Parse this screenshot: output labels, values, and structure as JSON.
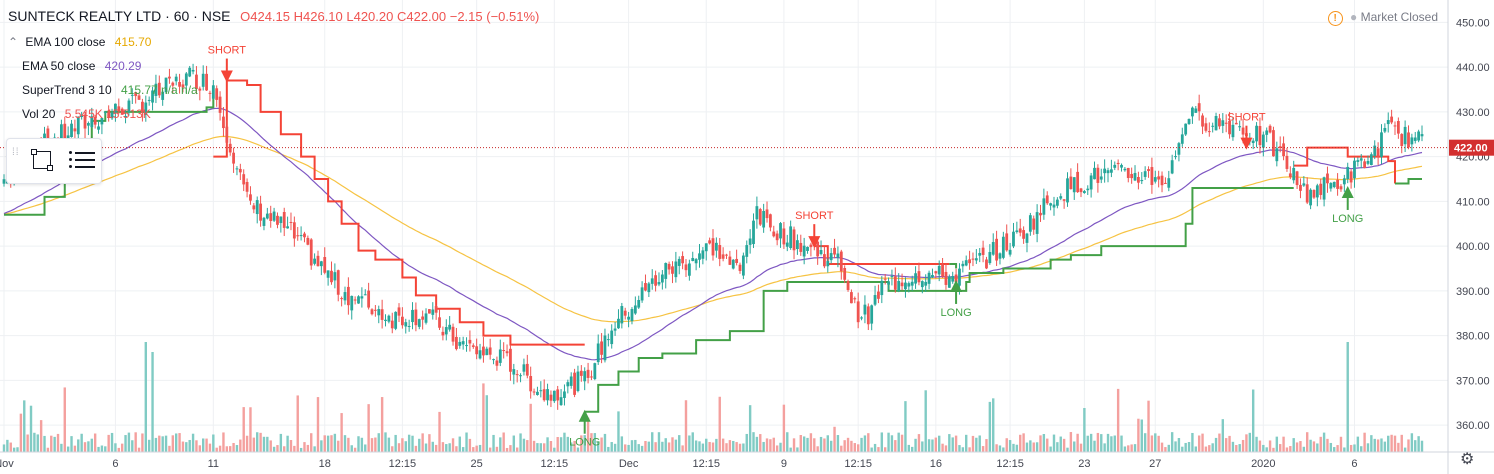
{
  "header": {
    "symbol": "SUNTECK REALTY LTD · 60 · NSE",
    "ohlc": "O424.15 H426.10 L420.20 C422.00 −2.15 (−0.51%)"
  },
  "market_status": "Market Closed",
  "legend": [
    {
      "name": "EMA 100 close",
      "value": "415.70",
      "color": "#f6c343"
    },
    {
      "name": "EMA 50 close",
      "value": "420.29",
      "color": "#7e57c2"
    },
    {
      "name": "SuperTrend 3 10",
      "value": "415.77 n/a n/a",
      "color": "#4caf50"
    },
    {
      "name": "Vol 20",
      "value": "5.545K 15.513K",
      "color": "#ef5350"
    }
  ],
  "colors": {
    "up": "#26a69a",
    "down": "#ef5350",
    "vol_up": "#80cbc4",
    "vol_down": "#f4a09e",
    "st_green": "#43a047",
    "st_red": "#f44336",
    "ema100": "#f6c343",
    "ema50": "#7e57c2",
    "grid": "#eef0f3",
    "axis_text": "#434651",
    "price_line": "#c62828"
  },
  "chart_data": {
    "type": "candlestick",
    "yaxis": {
      "ticks": [
        360,
        370,
        380,
        390,
        400,
        410,
        420,
        430,
        440,
        450
      ],
      "range": [
        354,
        455
      ]
    },
    "xaxis": {
      "ticks": [
        "Nov",
        "6",
        "11",
        "18",
        "12:15",
        "25",
        "12:15",
        "Dec",
        "12:15",
        "9",
        "12:15",
        "16",
        "12:15",
        "23",
        "27",
        "2020",
        "6"
      ]
    },
    "last_price": "422.00",
    "price_anchors": [
      [
        0,
        415
      ],
      [
        10,
        422
      ],
      [
        25,
        428
      ],
      [
        40,
        432
      ],
      [
        55,
        438
      ],
      [
        62,
        436
      ],
      [
        72,
        410
      ],
      [
        85,
        403
      ],
      [
        100,
        390
      ],
      [
        115,
        384
      ],
      [
        125,
        385
      ],
      [
        135,
        378
      ],
      [
        150,
        374
      ],
      [
        160,
        367
      ],
      [
        172,
        370
      ],
      [
        180,
        382
      ],
      [
        195,
        394
      ],
      [
        210,
        400
      ],
      [
        218,
        394
      ],
      [
        222,
        407
      ],
      [
        235,
        401
      ],
      [
        248,
        396
      ],
      [
        252,
        386
      ],
      [
        256,
        384
      ],
      [
        260,
        391
      ],
      [
        270,
        394
      ],
      [
        280,
        393
      ],
      [
        290,
        397
      ],
      [
        300,
        402
      ],
      [
        312,
        412
      ],
      [
        325,
        416
      ],
      [
        335,
        416
      ],
      [
        345,
        415
      ],
      [
        350,
        429
      ],
      [
        365,
        427
      ],
      [
        375,
        423
      ],
      [
        380,
        418
      ],
      [
        385,
        412
      ],
      [
        395,
        414
      ],
      [
        405,
        420
      ],
      [
        410,
        426
      ],
      [
        420,
        423
      ]
    ],
    "supertrend": [
      {
        "dir": "down",
        "points": [
          [
            62,
            420
          ],
          [
            66,
            437
          ],
          [
            72,
            436
          ],
          [
            76,
            430
          ],
          [
            82,
            425
          ],
          [
            88,
            420
          ],
          [
            92,
            415
          ],
          [
            96,
            410
          ],
          [
            100,
            405
          ],
          [
            105,
            399
          ],
          [
            110,
            397
          ],
          [
            115,
            397
          ],
          [
            118,
            393
          ],
          [
            122,
            389
          ],
          [
            128,
            386
          ],
          [
            135,
            383
          ],
          [
            142,
            380
          ],
          [
            150,
            378
          ],
          [
            160,
            378
          ],
          [
            166,
            378
          ],
          [
            172,
            378
          ]
        ]
      },
      {
        "dir": "up",
        "points": [
          [
            172,
            363
          ],
          [
            176,
            369
          ],
          [
            182,
            372
          ],
          [
            188,
            375
          ],
          [
            195,
            376
          ],
          [
            205,
            379
          ],
          [
            215,
            381
          ],
          [
            225,
            390
          ],
          [
            232,
            392
          ],
          [
            250,
            392
          ],
          [
            262,
            390
          ],
          [
            270,
            390
          ],
          [
            285,
            392
          ],
          [
            286,
            394
          ],
          [
            296,
            395
          ],
          [
            310,
            397
          ],
          [
            316,
            398
          ],
          [
            325,
            400
          ],
          [
            340,
            400
          ],
          [
            350,
            405
          ],
          [
            352,
            413
          ],
          [
            382,
            413
          ]
        ]
      },
      {
        "dir": "down",
        "points": [
          [
            382,
            418
          ],
          [
            386,
            422
          ],
          [
            394,
            422
          ],
          [
            398,
            420
          ],
          [
            410,
            419
          ],
          [
            412,
            414
          ]
        ]
      },
      {
        "dir": "up",
        "points": [
          [
            412,
            414
          ],
          [
            416,
            415
          ],
          [
            420,
            415
          ]
        ]
      },
      {
        "dir": "up",
        "points": [
          [
            0,
            407
          ],
          [
            6,
            407
          ],
          [
            12,
            411
          ],
          [
            18,
            416
          ],
          [
            22,
            423
          ],
          [
            26,
            428
          ],
          [
            30,
            430
          ],
          [
            45,
            430
          ],
          [
            60,
            431
          ],
          [
            62,
            435
          ]
        ]
      },
      {
        "dir": "down",
        "points": [
          [
            240,
            400
          ],
          [
            244,
            396
          ],
          [
            280,
            396
          ]
        ]
      },
      {
        "dir": "up",
        "points": [
          [
            280,
            396
          ],
          [
            282,
            395
          ]
        ]
      }
    ],
    "signals": [
      {
        "type": "SHORT",
        "bar": 66,
        "price": 437
      },
      {
        "type": "LONG",
        "bar": 172,
        "price": 363
      },
      {
        "type": "SHORT",
        "bar": 240,
        "price": 400
      },
      {
        "type": "LONG",
        "bar": 282,
        "price": 392
      },
      {
        "type": "SHORT",
        "bar": 368,
        "price": 422
      },
      {
        "type": "LONG",
        "bar": 398,
        "price": 413
      }
    ],
    "bars": 421
  }
}
